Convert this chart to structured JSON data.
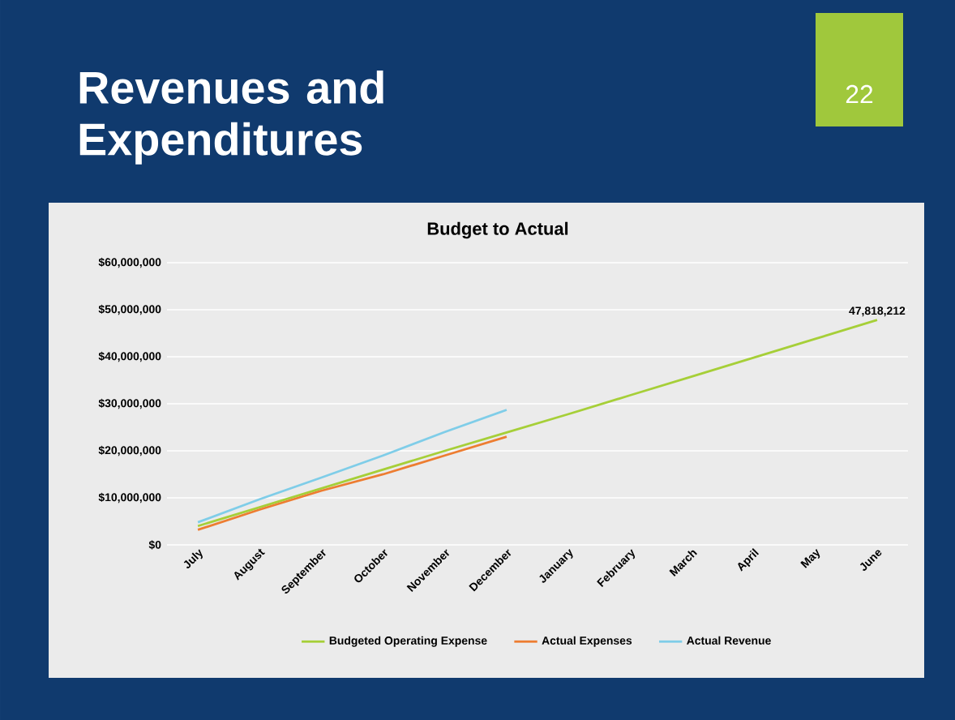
{
  "chart_data": {
    "type": "line",
    "title": "Revenues and Expenditures",
    "subtitle": "Budget to Actual",
    "annotations": [
      "22"
    ],
    "categories": [
      "July",
      "August",
      "September",
      "October",
      "November",
      "December",
      "January",
      "February",
      "March",
      "April",
      "May",
      "June"
    ],
    "series": [
      {
        "name": "Budgeted Operating Expense",
        "color": "#a6cf38",
        "values": [
          4000000,
          8000000,
          12000000,
          16000000,
          20000000,
          23900000,
          27800000,
          31800000,
          35800000,
          39800000,
          43800000,
          47818212
        ],
        "value_labels": [
          null,
          null,
          null,
          null,
          null,
          null,
          null,
          null,
          null,
          null,
          null,
          "47,818,212"
        ]
      },
      {
        "name": "Actual Expenses",
        "color": "#ed7d31",
        "values": [
          3200000,
          7500000,
          11500000,
          15000000,
          19000000,
          23000000,
          null,
          null,
          null,
          null,
          null,
          null
        ]
      },
      {
        "name": "Actual Revenue",
        "color": "#7fcde8",
        "values": [
          4800000,
          9700000,
          14300000,
          19000000,
          24000000,
          28700000,
          null,
          null,
          null,
          null,
          null,
          null
        ]
      }
    ],
    "ylim": [
      0,
      60000000
    ],
    "yticks": [
      {
        "value": 0,
        "label": "$0"
      },
      {
        "value": 10000000,
        "label": "$10,000,000"
      },
      {
        "value": 20000000,
        "label": "$20,000,000"
      },
      {
        "value": 30000000,
        "label": "$30,000,000"
      },
      {
        "value": 40000000,
        "label": "$40,000,000"
      },
      {
        "value": 50000000,
        "label": "$50,000,000"
      },
      {
        "value": 60000000,
        "label": "$60,000,000"
      }
    ],
    "grid": "y",
    "legend": "bottom",
    "line_style": "solid"
  }
}
